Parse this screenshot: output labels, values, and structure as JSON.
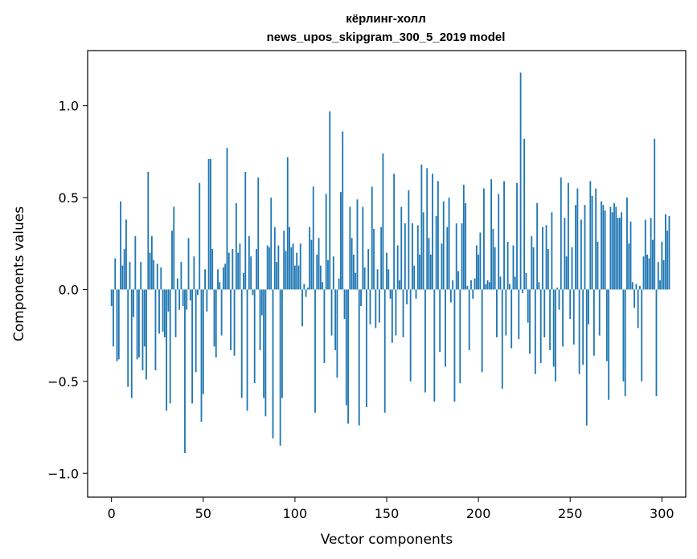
{
  "chart_data": {
    "type": "bar",
    "title": [
      "кёрлинг-холл",
      "news_upos_skipgram_300_5_2019 model"
    ],
    "xlabel": "Vector components",
    "ylabel": "Components values",
    "xlim": [
      -13,
      313
    ],
    "ylim": [
      -1.13,
      1.3
    ],
    "xticks": [
      0,
      50,
      100,
      150,
      200,
      250,
      300
    ],
    "xtick_labels": [
      "0",
      "50",
      "100",
      "150",
      "200",
      "250",
      "300"
    ],
    "yticks": [
      -1.0,
      -0.5,
      0.0,
      0.5,
      1.0
    ],
    "ytick_labels": [
      "−1.0",
      "−0.5",
      "0.0",
      "0.5",
      "1.0"
    ],
    "bar_color": "#1f77b4",
    "values": [
      -0.09,
      -0.31,
      0.17,
      -0.39,
      -0.38,
      0.48,
      0.13,
      0.22,
      0.38,
      -0.53,
      0.15,
      -0.59,
      -0.15,
      0.29,
      -0.38,
      -0.37,
      0.15,
      -0.44,
      -0.31,
      -0.49,
      0.64,
      0.2,
      0.29,
      0.16,
      -0.44,
      0.14,
      -0.24,
      0.12,
      -0.23,
      -0.26,
      -0.66,
      -0.12,
      -0.62,
      0.32,
      0.45,
      -0.26,
      0.06,
      -0.11,
      0.15,
      -0.09,
      -0.89,
      -0.11,
      0.28,
      -0.06,
      -0.62,
      0.18,
      -0.45,
      -0.03,
      0.58,
      -0.72,
      -0.57,
      0.11,
      -0.12,
      0.71,
      0.71,
      0.22,
      -0.31,
      -0.37,
      0.11,
      0.04,
      -0.25,
      0.12,
      0.14,
      0.77,
      0.2,
      -0.33,
      0.22,
      -0.36,
      0.47,
      0.2,
      0.25,
      -0.59,
      0.09,
      0.64,
      -0.66,
      0.29,
      0.18,
      -0.03,
      -0.51,
      0.22,
      0.61,
      -0.33,
      -0.14,
      -0.59,
      -0.69,
      0.24,
      0.23,
      0.5,
      -0.81,
      0.34,
      0.15,
      0.24,
      -0.85,
      -0.59,
      0.32,
      0.21,
      0.72,
      0.34,
      0.23,
      0.25,
      0.13,
      0.2,
      0.13,
      0.25,
      -0.2,
      0.03,
      -0.04,
      0.01,
      0.34,
      0.27,
      0.56,
      -0.67,
      0.19,
      0.28,
      0.13,
      0.04,
      -0.4,
      0.52,
      0.16,
      0.97,
      -0.25,
      0.18,
      -0.33,
      -0.48,
      0.06,
      0.53,
      0.86,
      -0.16,
      -0.63,
      -0.73,
      0.45,
      0.28,
      0.19,
      0.09,
      0.49,
      -0.74,
      -0.09,
      0.45,
      0.12,
      -0.64,
      0.22,
      -0.19,
      0.56,
      0.33,
      -0.21,
      0.11,
      -0.18,
      0.34,
      0.74,
      -0.67,
      0.2,
      0.11,
      -0.05,
      -0.29,
      0.63,
      -0.25,
      0.24,
      0.05,
      0.45,
      -0.26,
      0.36,
      -0.08,
      0.54,
      -0.5,
      0.36,
      0.13,
      -0.05,
      0.35,
      0.19,
      0.68,
      0.42,
      -0.56,
      0.66,
      0.28,
      0.19,
      0.63,
      -0.61,
      0.4,
      0.59,
      -0.34,
      0.25,
      0.48,
      -0.42,
      0.34,
      0.5,
      -0.07,
      0.05,
      -0.61,
      0.36,
      0.1,
      -0.51,
      0.36,
      0.57,
      0.47,
      0.02,
      -0.33,
      0.05,
      -0.05,
      0.06,
      0.24,
      0.19,
      0.31,
      -0.45,
      0.55,
      0.03,
      0.05,
      0.04,
      0.6,
      0.33,
      0.23,
      -0.26,
      0.52,
      0.07,
      -0.54,
      0.59,
      -0.25,
      0.26,
      0.03,
      -0.32,
      0.24,
      0.07,
      0.58,
      -0.27,
      1.18,
      -0.02,
      0.82,
      0.09,
      -0.18,
      -0.35,
      0.29,
      0.23,
      -0.46,
      0.47,
      0.04,
      -0.4,
      0.34,
      -0.26,
      0.35,
      0.22,
      -0.33,
      0.42,
      -0.42,
      -0.5,
      0.01,
      -0.11,
      0.61,
      -0.31,
      0.39,
      0.18,
      0.58,
      -0.16,
      0.23,
      -0.3,
      0.46,
      0.55,
      -0.46,
      0.38,
      -0.41,
      0.46,
      -0.74,
      -0.19,
      0.59,
      0.51,
      -0.36,
      0.55,
      0.26,
      -0.25,
      0.48,
      0.46,
      0.43,
      -0.39,
      -0.6,
      0.45,
      0.42,
      0.47,
      0.45,
      0.39,
      0.39,
      0.42,
      -0.5,
      -0.58,
      0.5,
      0.25,
      0.37,
      0.04,
      -0.1,
      0.03,
      -0.21,
      0.02,
      -0.5,
      0.18,
      0.38,
      0.19,
      0.17,
      0.39,
      0.27,
      0.82,
      -0.58,
      0.15,
      0.05,
      0.26,
      0.16,
      0.41,
      0.32,
      0.4
    ]
  }
}
